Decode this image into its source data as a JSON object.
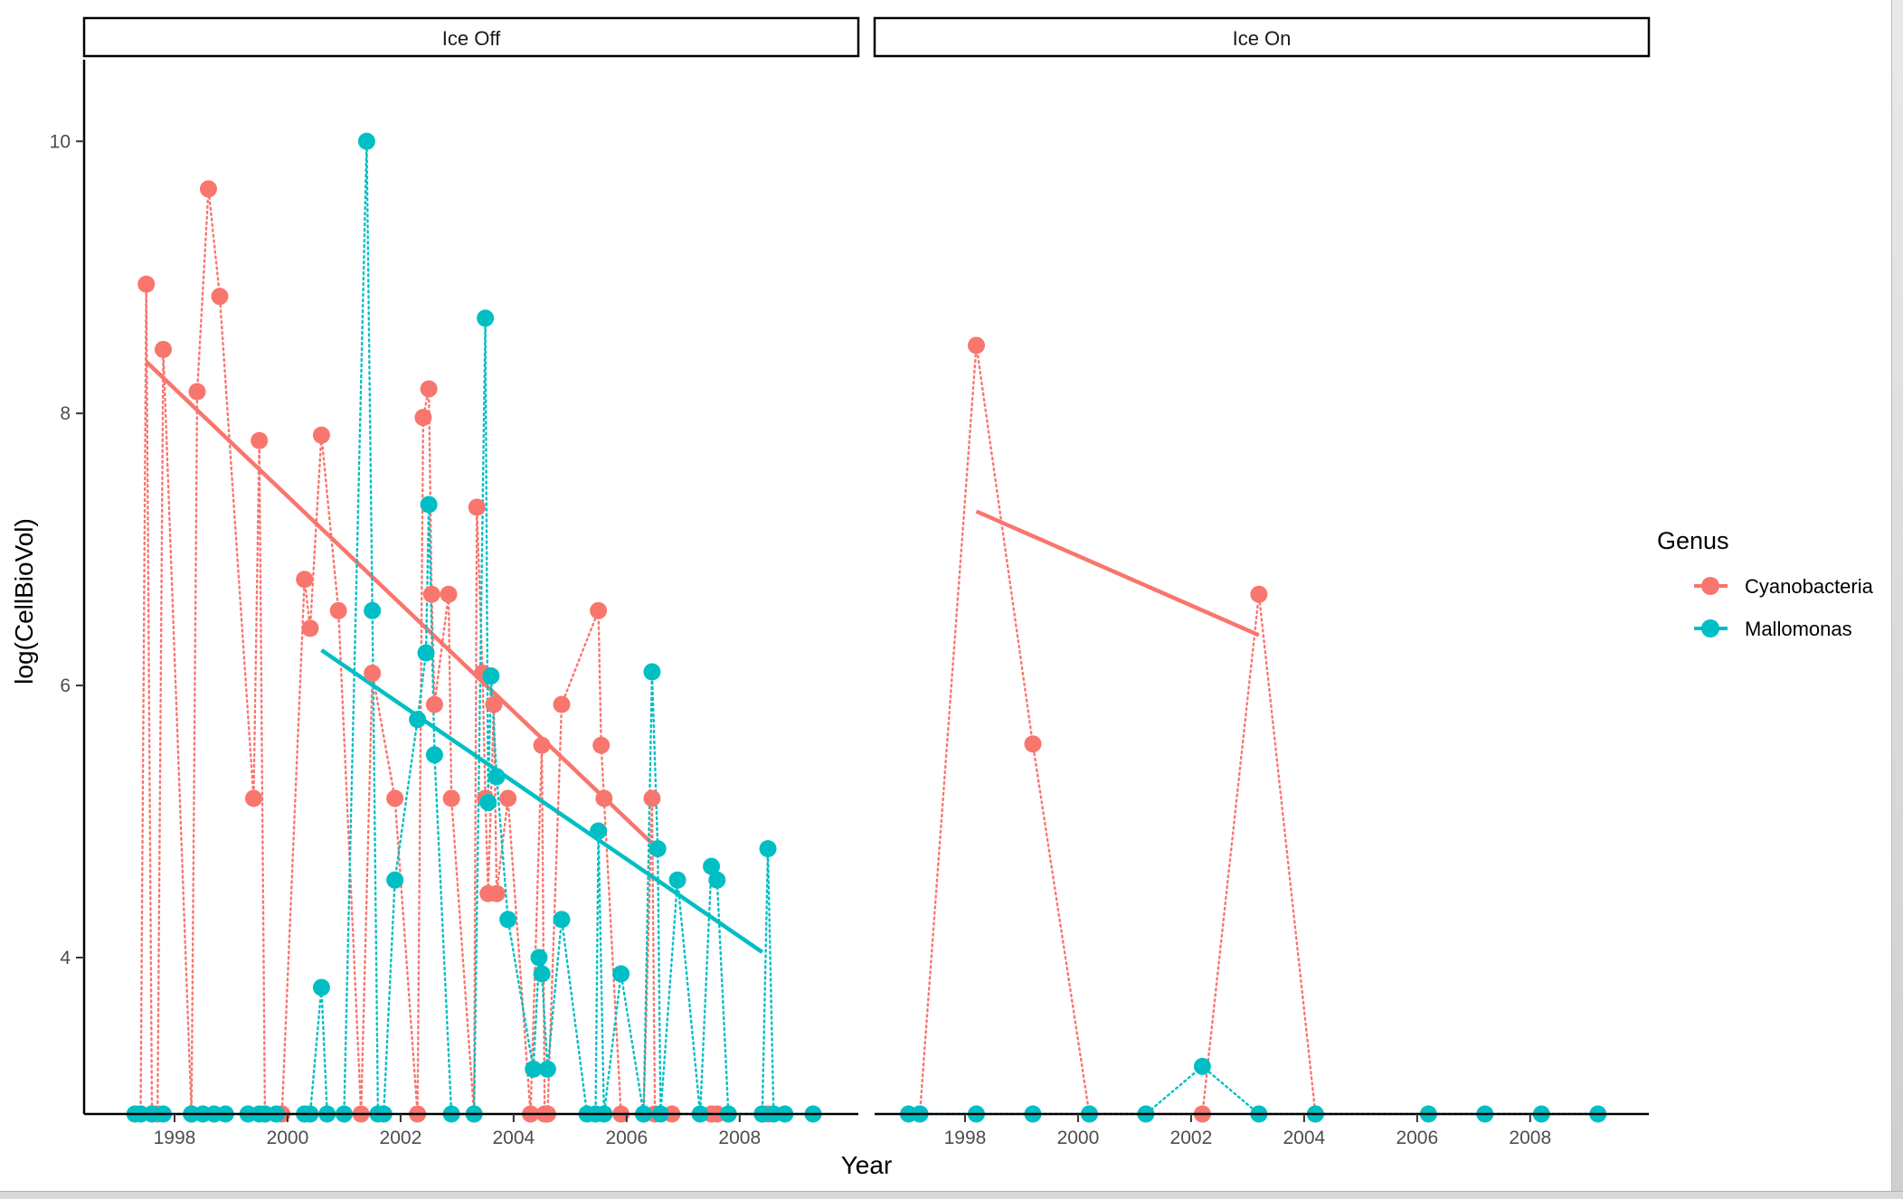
{
  "chart_data": {
    "type": "scatter",
    "xlabel": "Year",
    "ylabel": "log(CellBioVol)",
    "ylim": [
      2.85,
      10.6
    ],
    "yticks": [
      4,
      6,
      8,
      10
    ],
    "xticks": [
      1998,
      2000,
      2002,
      2004,
      2006,
      2008
    ],
    "grid": false,
    "legend": {
      "title": "Genus",
      "position": "right"
    },
    "colors": {
      "Cyanobacteria": "#F8766D",
      "Mallomonas": "#00BFC4"
    },
    "panels": [
      {
        "label": "Ice Off",
        "xlim": [
          1996.4,
          2010.1
        ],
        "series": [
          {
            "name": "Cyanobacteria",
            "points": [
              [
                1997.4,
                2.85
              ],
              [
                1997.5,
                8.95
              ],
              [
                1997.6,
                2.85
              ],
              [
                1997.7,
                2.85
              ],
              [
                1997.8,
                8.47
              ],
              [
                1998.3,
                2.85
              ],
              [
                1998.4,
                8.16
              ],
              [
                1998.6,
                9.65
              ],
              [
                1998.8,
                8.86
              ],
              [
                1999.4,
                5.17
              ],
              [
                1999.5,
                7.8
              ],
              [
                1999.6,
                2.85
              ],
              [
                1999.9,
                2.85
              ],
              [
                2000.3,
                6.78
              ],
              [
                2000.4,
                6.42
              ],
              [
                2000.6,
                7.84
              ],
              [
                2000.9,
                6.55
              ],
              [
                2001.3,
                2.85
              ],
              [
                2001.5,
                6.09
              ],
              [
                2001.9,
                5.17
              ],
              [
                2002.3,
                2.85
              ],
              [
                2002.4,
                7.97
              ],
              [
                2002.5,
                8.18
              ],
              [
                2002.55,
                6.67
              ],
              [
                2002.6,
                5.86
              ],
              [
                2002.85,
                6.67
              ],
              [
                2002.9,
                5.17
              ],
              [
                2003.3,
                2.85
              ],
              [
                2003.35,
                7.31
              ],
              [
                2003.45,
                6.09
              ],
              [
                2003.5,
                5.17
              ],
              [
                2003.55,
                4.47
              ],
              [
                2003.65,
                5.86
              ],
              [
                2003.7,
                4.47
              ],
              [
                2003.9,
                5.17
              ],
              [
                2004.3,
                2.85
              ],
              [
                2004.5,
                5.56
              ],
              [
                2004.55,
                2.85
              ],
              [
                2004.6,
                2.85
              ],
              [
                2004.85,
                5.86
              ],
              [
                2005.5,
                6.55
              ],
              [
                2005.55,
                5.56
              ],
              [
                2005.6,
                5.17
              ],
              [
                2005.9,
                2.85
              ],
              [
                2006.3,
                2.85
              ],
              [
                2006.45,
                5.17
              ],
              [
                2006.5,
                2.85
              ],
              [
                2006.8,
                2.85
              ],
              [
                2007.5,
                2.85
              ],
              [
                2007.6,
                2.85
              ],
              [
                2008.4,
                2.85
              ],
              [
                2008.5,
                2.85
              ]
            ],
            "trend": [
              [
                1997.5,
                8.38
              ],
              [
                2006.6,
                4.78
              ]
            ]
          },
          {
            "name": "Mallomonas",
            "points": [
              [
                1997.3,
                2.85
              ],
              [
                1997.4,
                2.85
              ],
              [
                1997.6,
                2.85
              ],
              [
                1997.8,
                2.85
              ],
              [
                1998.3,
                2.85
              ],
              [
                1998.5,
                2.85
              ],
              [
                1998.7,
                2.85
              ],
              [
                1998.9,
                2.85
              ],
              [
                1999.3,
                2.85
              ],
              [
                1999.5,
                2.85
              ],
              [
                1999.6,
                2.85
              ],
              [
                1999.8,
                2.85
              ],
              [
                2000.3,
                2.85
              ],
              [
                2000.4,
                2.85
              ],
              [
                2000.6,
                3.78
              ],
              [
                2000.7,
                2.85
              ],
              [
                2001.0,
                2.85
              ],
              [
                2001.4,
                10.0
              ],
              [
                2001.5,
                6.55
              ],
              [
                2001.6,
                2.85
              ],
              [
                2001.7,
                2.85
              ],
              [
                2001.9,
                4.57
              ],
              [
                2002.3,
                5.75
              ],
              [
                2002.45,
                6.24
              ],
              [
                2002.5,
                7.33
              ],
              [
                2002.6,
                5.49
              ],
              [
                2002.9,
                2.85
              ],
              [
                2003.3,
                2.85
              ],
              [
                2003.5,
                8.7
              ],
              [
                2003.55,
                5.14
              ],
              [
                2003.6,
                6.07
              ],
              [
                2003.7,
                5.33
              ],
              [
                2003.9,
                4.28
              ],
              [
                2004.35,
                3.18
              ],
              [
                2004.45,
                4.0
              ],
              [
                2004.5,
                3.88
              ],
              [
                2004.6,
                3.18
              ],
              [
                2004.85,
                4.28
              ],
              [
                2005.3,
                2.85
              ],
              [
                2005.45,
                2.85
              ],
              [
                2005.5,
                4.93
              ],
              [
                2005.6,
                2.85
              ],
              [
                2005.9,
                3.88
              ],
              [
                2006.3,
                2.85
              ],
              [
                2006.45,
                6.1
              ],
              [
                2006.55,
                4.8
              ],
              [
                2006.6,
                2.85
              ],
              [
                2006.9,
                4.57
              ],
              [
                2007.3,
                2.85
              ],
              [
                2007.5,
                4.67
              ],
              [
                2007.6,
                4.57
              ],
              [
                2007.8,
                2.85
              ],
              [
                2008.4,
                2.85
              ],
              [
                2008.5,
                4.8
              ],
              [
                2008.6,
                2.85
              ],
              [
                2008.8,
                2.85
              ],
              [
                2009.3,
                2.85
              ]
            ],
            "trend": [
              [
                2000.6,
                6.26
              ],
              [
                2008.4,
                4.04
              ]
            ]
          }
        ]
      },
      {
        "label": "Ice On",
        "xlim": [
          1996.4,
          2010.1
        ],
        "series": [
          {
            "name": "Cyanobacteria",
            "points": [
              [
                1997.2,
                2.85
              ],
              [
                1998.2,
                8.5
              ],
              [
                1999.2,
                5.57
              ],
              [
                2000.2,
                2.85
              ],
              [
                2002.2,
                2.85
              ],
              [
                2003.2,
                6.67
              ],
              [
                2004.2,
                2.85
              ]
            ],
            "trend": [
              [
                1998.2,
                7.28
              ],
              [
                2003.2,
                6.37
              ]
            ]
          },
          {
            "name": "Mallomonas",
            "points": [
              [
                1997.0,
                2.85
              ],
              [
                1997.2,
                2.85
              ],
              [
                1998.2,
                2.85
              ],
              [
                1999.2,
                2.85
              ],
              [
                2000.2,
                2.85
              ],
              [
                2001.2,
                2.85
              ],
              [
                2002.2,
                3.2
              ],
              [
                2003.2,
                2.85
              ],
              [
                2004.2,
                2.85
              ],
              [
                2006.2,
                2.85
              ],
              [
                2007.2,
                2.85
              ],
              [
                2008.2,
                2.85
              ],
              [
                2009.2,
                2.85
              ]
            ],
            "trend": []
          }
        ]
      }
    ]
  }
}
